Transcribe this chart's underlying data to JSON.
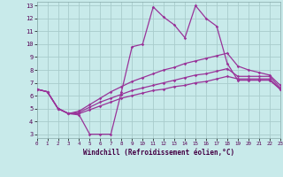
{
  "xlabel": "Windchill (Refroidissement éolien,°C)",
  "bg_color": "#c8eaea",
  "grid_color": "#a8cccc",
  "line_color": "#993399",
  "x_values": [
    0,
    1,
    2,
    3,
    4,
    5,
    6,
    7,
    8,
    9,
    10,
    11,
    12,
    13,
    14,
    15,
    16,
    17,
    18,
    19,
    20,
    21,
    22,
    23
  ],
  "y_line1": [
    6.5,
    6.3,
    5.0,
    4.6,
    4.5,
    3.0,
    3.0,
    3.0,
    6.3,
    9.8,
    10.0,
    12.9,
    12.1,
    11.5,
    10.5,
    13.0,
    12.0,
    11.4,
    8.5,
    7.2,
    7.2,
    7.2,
    7.2,
    6.5
  ],
  "y_line2": [
    6.5,
    6.3,
    5.0,
    4.6,
    4.6,
    4.9,
    5.2,
    5.5,
    5.8,
    6.0,
    6.2,
    6.4,
    6.5,
    6.7,
    6.8,
    7.0,
    7.1,
    7.3,
    7.5,
    7.3,
    7.3,
    7.3,
    7.3,
    6.5
  ],
  "y_line3": [
    6.5,
    6.3,
    5.0,
    4.6,
    4.7,
    5.1,
    5.5,
    5.8,
    6.1,
    6.4,
    6.6,
    6.8,
    7.0,
    7.2,
    7.4,
    7.6,
    7.7,
    7.9,
    8.1,
    7.5,
    7.5,
    7.5,
    7.5,
    6.6
  ],
  "y_line4": [
    6.5,
    6.3,
    5.0,
    4.6,
    4.8,
    5.3,
    5.8,
    6.3,
    6.7,
    7.1,
    7.4,
    7.7,
    8.0,
    8.2,
    8.5,
    8.7,
    8.9,
    9.1,
    9.3,
    8.3,
    8.0,
    7.8,
    7.6,
    6.8
  ],
  "xlim": [
    0,
    23
  ],
  "ylim": [
    2.7,
    13.3
  ],
  "yticks": [
    3,
    4,
    5,
    6,
    7,
    8,
    9,
    10,
    11,
    12,
    13
  ],
  "xticks": [
    0,
    1,
    2,
    3,
    4,
    5,
    6,
    7,
    8,
    9,
    10,
    11,
    12,
    13,
    14,
    15,
    16,
    17,
    18,
    19,
    20,
    21,
    22,
    23
  ]
}
